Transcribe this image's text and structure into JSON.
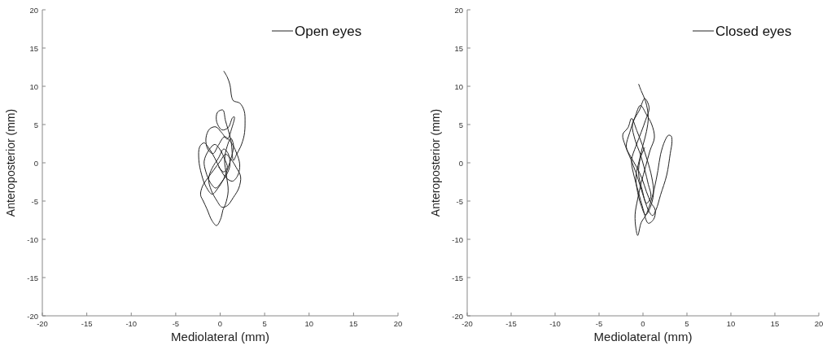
{
  "chart_data": [
    {
      "type": "line",
      "xlabel": "Mediolateral (mm)",
      "ylabel": "Anteroposterior (mm)",
      "xlim": [
        -20,
        20
      ],
      "ylim": [
        -20,
        20
      ],
      "xticks": [
        -20,
        -15,
        -10,
        -5,
        0,
        5,
        10,
        15,
        20
      ],
      "yticks": [
        -20,
        -15,
        -10,
        -5,
        0,
        5,
        10,
        15,
        20
      ],
      "legend": "top right",
      "grid": false,
      "series": [
        {
          "name": "Open eyes",
          "color": "#222222",
          "x": [
            0.4,
            0.8,
            1.1,
            1.3,
            1.5,
            2.2,
            2.7,
            2.8,
            2.7,
            2.3,
            1.8,
            1.5,
            1.2,
            0.6,
            0.3,
            -0.3,
            -0.4,
            0.2,
            0.9,
            1.4,
            1.6,
            1.3,
            0.8,
            0.2,
            -0.5,
            -1.2,
            -1.6,
            -1.4,
            -0.8,
            -0.2,
            0.5,
            1.2,
            1.8,
            2.2,
            2.0,
            1.4,
            0.7,
            0.0,
            -0.6,
            -1.2,
            -1.8,
            -2.3,
            -2.4,
            -2.1,
            -1.6,
            -0.9,
            -0.3,
            0.4,
            0.9,
            1.3,
            1.5,
            1.2,
            0.8,
            0.5,
            0.7,
            0.9,
            0.6,
            0.3,
            0.1,
            -0.4,
            -0.9,
            -1.5,
            -1.9,
            -2.2,
            -2.0,
            -1.4,
            -0.7,
            0.0,
            0.6,
            1.2,
            1.8,
            2.3,
            2.1,
            1.5,
            0.8,
            0.2,
            -0.4,
            -1.0,
            -1.3,
            -0.9,
            -0.2,
            0.4,
            0.9,
            1.1,
            0.7,
            0.1,
            -0.5,
            -1.1,
            -1.6,
            -1.8,
            -1.3,
            -0.6,
            0.0,
            0.5,
            0.8,
            0.4,
            -0.2
          ],
          "values": [
            12,
            11.2,
            10.2,
            8.6,
            8.1,
            7.8,
            6.8,
            5.2,
            3.6,
            2.1,
            1.0,
            0.3,
            3.0,
            5.5,
            6.9,
            6.6,
            5.4,
            4.3,
            4.6,
            5.9,
            6.0,
            4.5,
            3.1,
            3.9,
            4.7,
            4.4,
            3.2,
            1.8,
            1.2,
            2.3,
            3.4,
            2.7,
            1.4,
            -0.2,
            -1.6,
            -2.4,
            -2.0,
            -0.8,
            0.6,
            1.8,
            2.6,
            2.1,
            0.4,
            -1.5,
            -3.1,
            -4.1,
            -3.4,
            -2.1,
            -0.6,
            0.9,
            2.3,
            3.2,
            2.2,
            0.4,
            -1.6,
            -3.7,
            -5.4,
            -6.2,
            -7.2,
            -8.2,
            -7.6,
            -6.0,
            -5.0,
            -4.2,
            -3.1,
            -2.0,
            -0.9,
            0.2,
            1.1,
            0.5,
            -0.6,
            -1.8,
            -3.3,
            -4.5,
            -5.6,
            -5.8,
            -4.9,
            -3.6,
            -2.1,
            -0.7,
            0.6,
            1.8,
            1.2,
            -0.3,
            -1.6,
            -2.6,
            -3.3,
            -2.6,
            -1.2,
            0.2,
            1.6,
            2.4,
            1.7,
            0.5,
            -0.6,
            -1.2,
            -0.5
          ]
        }
      ]
    },
    {
      "type": "line",
      "xlabel": "Mediolateral (mm)",
      "ylabel": "Anteroposterior (mm)",
      "xlim": [
        -20,
        20
      ],
      "ylim": [
        -20,
        20
      ],
      "xticks": [
        -20,
        -15,
        -10,
        -5,
        0,
        5,
        10,
        15,
        20
      ],
      "yticks": [
        -20,
        -15,
        -10,
        -5,
        0,
        5,
        10,
        15,
        20
      ],
      "legend": "top right",
      "grid": false,
      "series": [
        {
          "name": "Closed eyes",
          "color": "#222222",
          "x": [
            -0.5,
            -0.2,
            0.3,
            0.6,
            0.4,
            0.0,
            -0.4,
            -0.8,
            -0.6,
            -0.2,
            0.3,
            0.8,
            1.2,
            1.0,
            0.5,
            -0.1,
            -0.7,
            -1.3,
            -1.7,
            -2.3,
            -2.0,
            -1.4,
            -0.8,
            -0.3,
            0.2,
            0.7,
            1.1,
            1.5,
            2.0,
            2.7,
            3.1,
            3.3,
            3.2,
            2.9,
            2.5,
            2.0,
            1.7,
            1.3,
            0.8,
            0.3,
            -0.2,
            -0.6,
            -0.8,
            -0.9,
            -0.6,
            -0.2,
            0.3,
            0.8,
            1.3,
            1.0,
            0.4,
            -0.3,
            -0.9,
            -1.5,
            -1.9,
            -1.4,
            -0.7,
            -0.1,
            0.4,
            0.9,
            1.4,
            1.2,
            0.6,
            0.0,
            -0.5,
            -1.0,
            -1.3,
            -0.8,
            -0.2,
            0.3,
            0.7,
            0.2,
            -0.4,
            -1.2,
            -0.9,
            -0.3,
            0.2,
            0.6,
            0.9,
            0.4,
            -0.1,
            -0.5,
            -0.3,
            0.2
          ],
          "values": [
            10.3,
            9.4,
            8.0,
            6.0,
            4.1,
            2.3,
            0.4,
            -1.8,
            -3.9,
            -5.6,
            -6.8,
            -5.9,
            -4.0,
            -1.9,
            0.3,
            2.4,
            4.2,
            5.8,
            4.6,
            3.7,
            2.2,
            0.5,
            -1.3,
            -3.1,
            -4.9,
            -6.4,
            -6.9,
            -6.1,
            -4.2,
            -1.6,
            1.2,
            2.8,
            3.5,
            3.6,
            2.9,
            1.1,
            -1.0,
            -3.3,
            -5.4,
            -6.9,
            -7.8,
            -9.5,
            -8.6,
            -6.8,
            -4.7,
            -2.6,
            -0.5,
            1.6,
            3.3,
            5.0,
            6.3,
            7.5,
            6.0,
            4.0,
            2.1,
            0.8,
            -0.6,
            -2.1,
            -3.8,
            -5.2,
            -6.2,
            -7.4,
            -7.9,
            -6.0,
            -3.9,
            -1.8,
            0.3,
            2.2,
            4.0,
            5.6,
            7.2,
            8.4,
            6.9,
            5.0,
            3.0,
            1.1,
            -0.9,
            -2.8,
            -4.4,
            -5.3,
            -3.5,
            -1.4,
            0.6,
            2.0
          ]
        }
      ]
    }
  ]
}
